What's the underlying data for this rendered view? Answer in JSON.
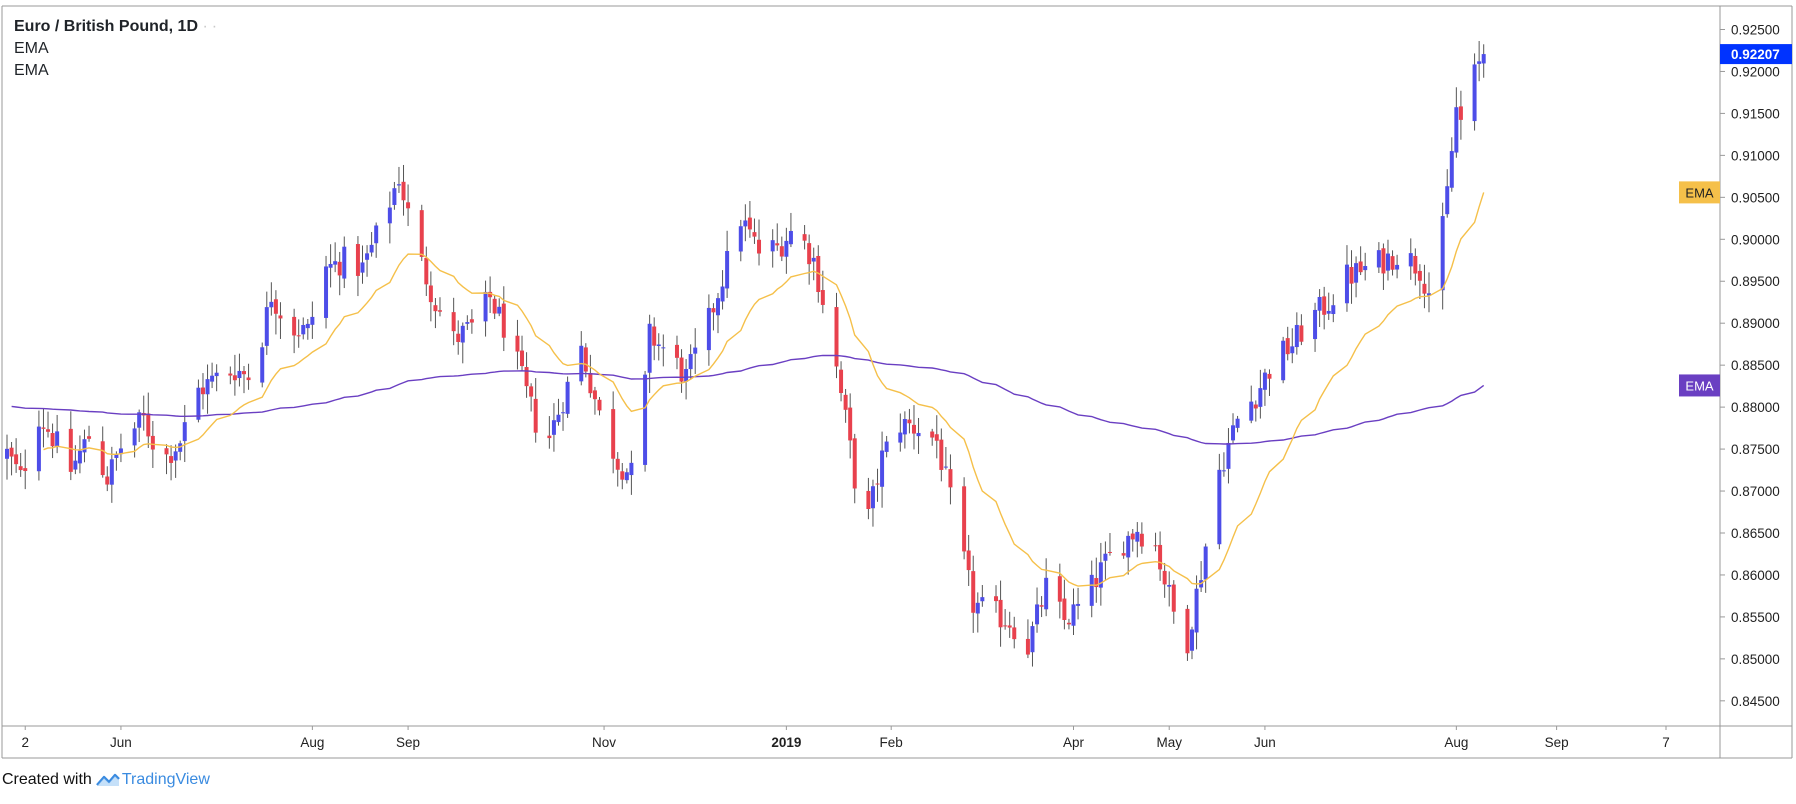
{
  "legend": {
    "title": "Euro / British Pound, 1D",
    "indicator1": "EMA",
    "indicator2": "EMA"
  },
  "footer": {
    "created_with": "Created with",
    "brand": "TradingView"
  },
  "colors": {
    "bull": "#4d4de8",
    "bear": "#e8414d",
    "wick": "#555555",
    "ema_fast": "#f5c04a",
    "ema_slow": "#6a3fc2",
    "last_price_bg": "#0033ff",
    "border": "#999999"
  },
  "chart_data": {
    "type": "candlestick",
    "symbol": "Euro / British Pound",
    "interval": "1D",
    "ylim": [
      0.842,
      0.9278
    ],
    "y_ticks": [
      "0.92500",
      "0.92000",
      "0.91500",
      "0.91000",
      "0.90500",
      "0.90000",
      "0.89500",
      "0.89000",
      "0.88500",
      "0.88000",
      "0.87500",
      "0.87000",
      "0.86500",
      "0.86000",
      "0.85500",
      "0.85000",
      "0.84500"
    ],
    "x_ticks": [
      {
        "label": "2",
        "t": 4
      },
      {
        "label": "Jun",
        "t": 25
      },
      {
        "label": "Aug",
        "t": 67
      },
      {
        "label": "Sep",
        "t": 88
      },
      {
        "label": "Nov",
        "t": 131
      },
      {
        "label": "2019",
        "t": 171,
        "bold": true
      },
      {
        "label": "Feb",
        "t": 194
      },
      {
        "label": "Apr",
        "t": 234
      },
      {
        "label": "May",
        "t": 255
      },
      {
        "label": "Jun",
        "t": 276
      },
      {
        "label": "Aug",
        "t": 318
      },
      {
        "label": "Sep",
        "t": 340
      },
      {
        "label": "7",
        "t": 364
      }
    ],
    "close_anchors": [
      [
        0,
        0.8745
      ],
      [
        3,
        0.8715
      ],
      [
        7,
        0.879
      ],
      [
        10,
        0.8765
      ],
      [
        14,
        0.8725
      ],
      [
        18,
        0.8765
      ],
      [
        22,
        0.8715
      ],
      [
        26,
        0.8765
      ],
      [
        30,
        0.8785
      ],
      [
        34,
        0.8735
      ],
      [
        38,
        0.876
      ],
      [
        42,
        0.882
      ],
      [
        46,
        0.8835
      ],
      [
        50,
        0.8845
      ],
      [
        54,
        0.8835
      ],
      [
        58,
        0.8935
      ],
      [
        62,
        0.8895
      ],
      [
        66,
        0.889
      ],
      [
        70,
        0.8965
      ],
      [
        74,
        0.8975
      ],
      [
        78,
        0.8965
      ],
      [
        82,
        0.9015
      ],
      [
        86,
        0.9075
      ],
      [
        90,
        0.8985
      ],
      [
        94,
        0.8925
      ],
      [
        98,
        0.888
      ],
      [
        102,
        0.8895
      ],
      [
        106,
        0.893
      ],
      [
        110,
        0.8885
      ],
      [
        114,
        0.8815
      ],
      [
        118,
        0.875
      ],
      [
        122,
        0.881
      ],
      [
        126,
        0.887
      ],
      [
        130,
        0.879
      ],
      [
        134,
        0.8735
      ],
      [
        138,
        0.8715
      ],
      [
        141,
        0.8885
      ],
      [
        145,
        0.8865
      ],
      [
        149,
        0.8835
      ],
      [
        153,
        0.8885
      ],
      [
        157,
        0.8955
      ],
      [
        161,
        0.9025
      ],
      [
        165,
        0.8985
      ],
      [
        169,
        0.899
      ],
      [
        173,
        0.9015
      ],
      [
        177,
        0.8975
      ],
      [
        180,
        0.8905
      ],
      [
        184,
        0.8785
      ],
      [
        188,
        0.8645
      ],
      [
        192,
        0.874
      ],
      [
        196,
        0.878
      ],
      [
        200,
        0.8775
      ],
      [
        204,
        0.876
      ],
      [
        208,
        0.8665
      ],
      [
        212,
        0.8565
      ],
      [
        216,
        0.8555
      ],
      [
        220,
        0.8545
      ],
      [
        224,
        0.8515
      ],
      [
        228,
        0.8585
      ],
      [
        232,
        0.8545
      ],
      [
        236,
        0.8565
      ],
      [
        240,
        0.8605
      ],
      [
        244,
        0.8635
      ],
      [
        248,
        0.8655
      ],
      [
        252,
        0.8635
      ],
      [
        256,
        0.8555
      ],
      [
        258,
        0.8495
      ],
      [
        262,
        0.8605
      ],
      [
        266,
        0.8725
      ],
      [
        270,
        0.8785
      ],
      [
        274,
        0.8815
      ],
      [
        278,
        0.8855
      ],
      [
        282,
        0.8875
      ],
      [
        286,
        0.8905
      ],
      [
        290,
        0.8925
      ],
      [
        294,
        0.8955
      ],
      [
        298,
        0.8965
      ],
      [
        302,
        0.8975
      ],
      [
        306,
        0.8985
      ],
      [
        310,
        0.8965
      ],
      [
        313,
        0.8925
      ],
      [
        316,
        0.9055
      ],
      [
        318,
        0.9155
      ],
      [
        320,
        0.9125
      ],
      [
        322,
        0.9195
      ],
      [
        324,
        0.9221
      ]
    ],
    "last_price": "0.92207",
    "indicators": [
      {
        "name": "EMA",
        "period": 20,
        "axis_label": "EMA"
      },
      {
        "name": "EMA",
        "period": 200,
        "axis_label": "EMA"
      }
    ],
    "grid": false
  }
}
